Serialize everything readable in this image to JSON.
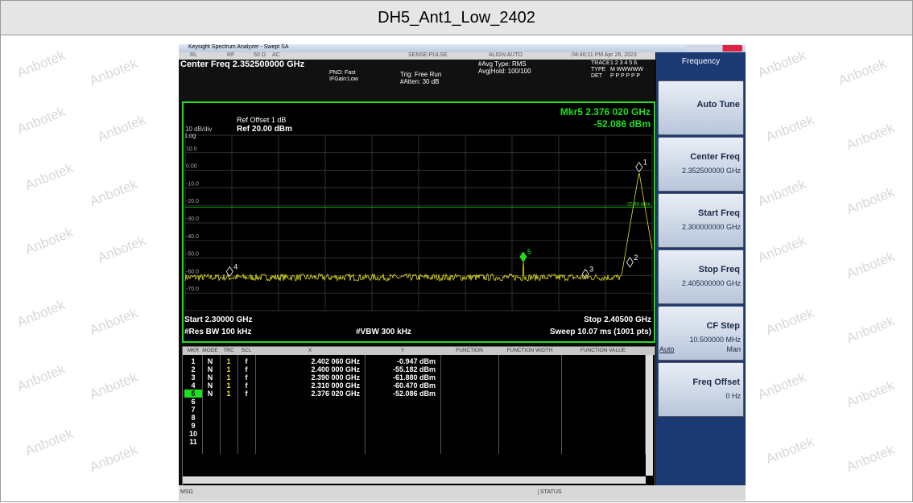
{
  "header": {
    "title": "DH5_Ant1_Low_2402"
  },
  "watermark": "Anbotek",
  "window": {
    "title": "Keysight Spectrum Analyzer - Swept SA"
  },
  "status_bar": [
    "RL",
    "RF",
    "50 Ω",
    "AC",
    "SENSE:PULSE",
    "ALIGN AUTO",
    "04:46:11 PM Apr 26, 2023"
  ],
  "settings": {
    "center_freq": "Center Freq 2.352500000 GHz",
    "pno": "PNO: Fast",
    "ifgain": "IFGain:Low",
    "trig": "Trig: Free Run",
    "atten": "#Atten: 30 dB",
    "avg_type": "#Avg Type: RMS",
    "avg_hold": "Avg|Hold: 100/100",
    "trace_label": "TRACE",
    "trace": "1 2 3 4 5 6",
    "type_label": "TYPE",
    "type": "M WWWWW",
    "det_label": "DET",
    "det": "P P P P P P"
  },
  "plot": {
    "ref_offset": "Ref Offset 1 dB",
    "ref": "Ref 20.00 dBm",
    "scale": "10 dB/div",
    "log": "Log",
    "marker_readout": "Mkr5 2.376 020 GHz",
    "marker_level": "-52.086 dBm",
    "y_labels": [
      "10.0",
      "0.00",
      "-10.0",
      "-20.0",
      "-30.0",
      "-40.0",
      "-50.0",
      "-60.0",
      "-70.0"
    ],
    "limit_label": "-20.95 dBm",
    "markers": [
      "1",
      "2",
      "3",
      "4",
      "5"
    ],
    "start": "Start 2.30000 GHz",
    "stop": "Stop 2.40500 GHz",
    "rbw": "#Res BW 100 kHz",
    "vbw": "#VBW 300 kHz",
    "sweep": "Sweep  10.07 ms (1001 pts)"
  },
  "table": {
    "columns": [
      "MKR",
      "MODE",
      "TRC",
      "SCL",
      "X",
      "Y",
      "FUNCTION",
      "FUNCTION WIDTH",
      "FUNCTION VALUE"
    ],
    "rows": [
      [
        "1",
        "N",
        "1",
        "f",
        "2.402 060 GHz",
        "-0.947 dBm"
      ],
      [
        "2",
        "N",
        "1",
        "f",
        "2.400 000 GHz",
        "-55.182 dBm"
      ],
      [
        "3",
        "N",
        "1",
        "f",
        "2.390 000 GHz",
        "-61.880 dBm"
      ],
      [
        "4",
        "N",
        "1",
        "f",
        "2.310 000 GHz",
        "-60.470 dBm"
      ],
      [
        "5",
        "N",
        "1",
        "f",
        "2.376 020 GHz",
        "-52.086 dBm"
      ]
    ],
    "empty_rows": [
      "6",
      "7",
      "8",
      "9",
      "10",
      "11"
    ]
  },
  "msg": "MSG",
  "status": "STATUS",
  "softkeys": {
    "title": "Frequency",
    "keys": [
      {
        "label": "Auto Tune"
      },
      {
        "label": "Center Freq",
        "value": "2.352500000 GHz"
      },
      {
        "label": "Start Freq",
        "value": "2.300000000 GHz"
      },
      {
        "label": "Stop Freq",
        "value": "2.405000000 GHz"
      },
      {
        "label": "CF Step",
        "value": "10.500000 MHz",
        "auto": "Auto",
        "man": "Man"
      },
      {
        "label": "Freq Offset",
        "value": "0 Hz"
      }
    ]
  }
}
